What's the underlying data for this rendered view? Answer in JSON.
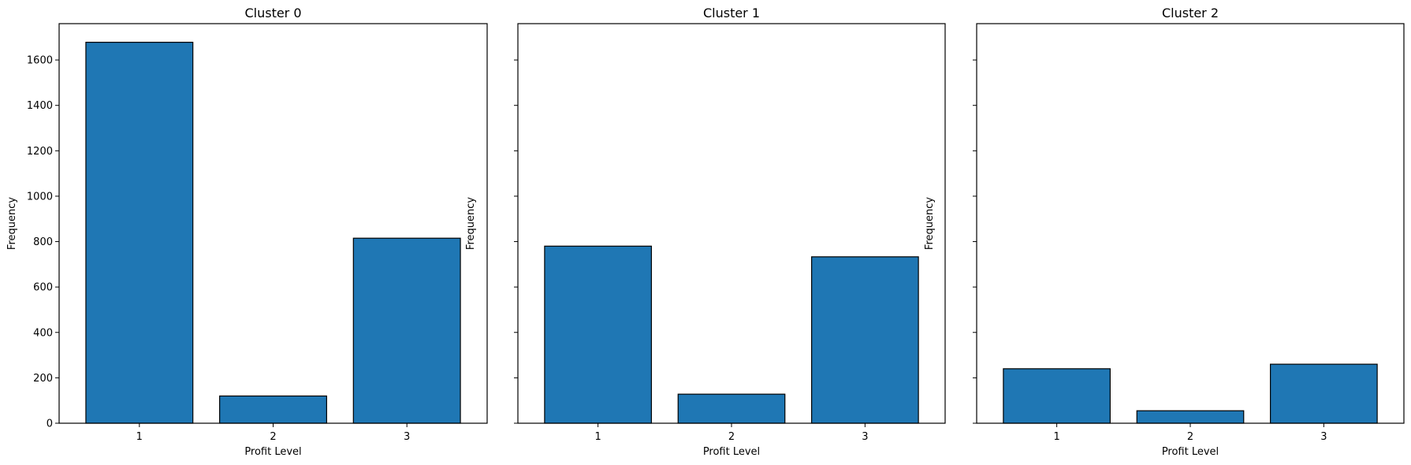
{
  "chart_data": [
    {
      "type": "bar",
      "title": "Cluster 0",
      "xlabel": "Profit Level",
      "ylabel": "Frequency",
      "categories": [
        "1",
        "2",
        "3"
      ],
      "values": [
        1678,
        120,
        815
      ],
      "ylim": [
        0,
        1760
      ],
      "yticks": [
        0,
        200,
        400,
        600,
        800,
        1000,
        1200,
        1400,
        1600
      ],
      "show_ytick_labels": true,
      "bar_color": "#1f77b4",
      "edge_color": "#000000",
      "grid": false
    },
    {
      "type": "bar",
      "title": "Cluster 1",
      "xlabel": "Profit Level",
      "ylabel": "Frequency",
      "categories": [
        "1",
        "2",
        "3"
      ],
      "values": [
        780,
        128,
        733
      ],
      "ylim": [
        0,
        1760
      ],
      "yticks": [
        0,
        200,
        400,
        600,
        800,
        1000,
        1200,
        1400,
        1600
      ],
      "show_ytick_labels": false,
      "bar_color": "#1f77b4",
      "edge_color": "#000000",
      "grid": false
    },
    {
      "type": "bar",
      "title": "Cluster 2",
      "xlabel": "Profit Level",
      "ylabel": "Frequency",
      "categories": [
        "1",
        "2",
        "3"
      ],
      "values": [
        240,
        55,
        260
      ],
      "ylim": [
        0,
        1760
      ],
      "yticks": [
        0,
        200,
        400,
        600,
        800,
        1000,
        1200,
        1400,
        1600
      ],
      "show_ytick_labels": false,
      "bar_color": "#1f77b4",
      "edge_color": "#000000",
      "grid": false
    }
  ]
}
